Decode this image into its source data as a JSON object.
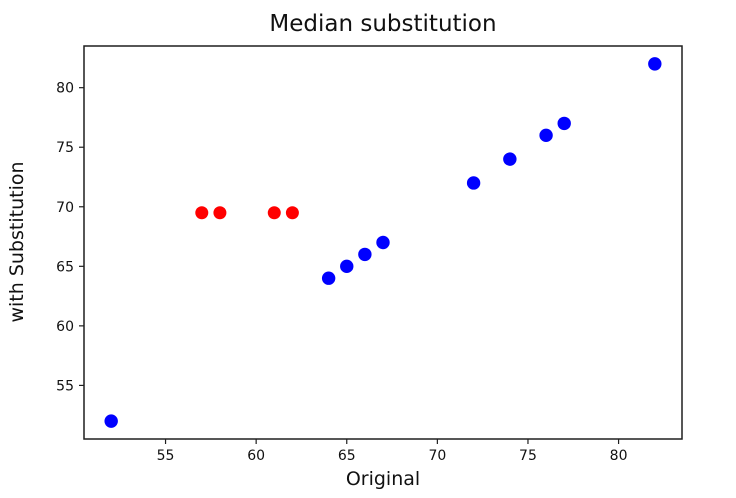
{
  "chart_data": {
    "type": "scatter",
    "title": "Median substitution",
    "xlabel": "Original",
    "ylabel": "with Substitution",
    "xlim": [
      50.5,
      83.5
    ],
    "ylim": [
      50.5,
      83.5
    ],
    "xticks": [
      55,
      60,
      65,
      70,
      75,
      80
    ],
    "yticks": [
      55,
      60,
      65,
      70,
      75,
      80
    ],
    "grid": false,
    "legend": false,
    "series": [
      {
        "name": "blue",
        "color": "#0000ff",
        "marker": "circle",
        "marker_radius": 6.7,
        "points": [
          [
            52,
            52
          ],
          [
            64,
            64
          ],
          [
            65,
            65
          ],
          [
            66,
            66
          ],
          [
            67,
            67
          ],
          [
            72,
            72
          ],
          [
            74,
            74
          ],
          [
            76,
            76
          ],
          [
            77,
            77
          ],
          [
            82,
            82
          ]
        ]
      },
      {
        "name": "red",
        "color": "#ff0000",
        "marker": "circle",
        "marker_radius": 6.5,
        "points": [
          [
            57,
            69.5
          ],
          [
            58,
            69.5
          ],
          [
            61,
            69.5
          ],
          [
            62,
            69.5
          ]
        ]
      }
    ],
    "colors": {
      "background": "#ffffff",
      "axes": "#1f1f1f",
      "text": "#111111"
    }
  }
}
